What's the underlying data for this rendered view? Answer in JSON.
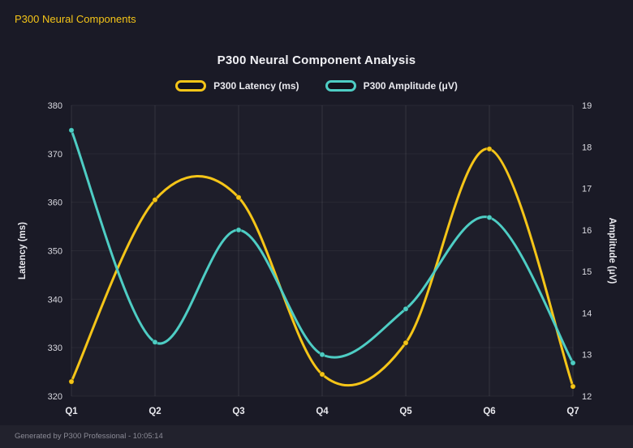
{
  "header": {
    "title": "P300 Neural Components"
  },
  "footer": {
    "text": "Generated by P300 Professional - 10:05:14"
  },
  "colors": {
    "page_background": "#1a1a26",
    "plot_background": "rgba(255,255,255,0.02)",
    "accent_yellow": "#f5c518",
    "accent_teal": "#4ecdc4",
    "grid_vertical": "rgba(255,255,255,0.10)",
    "grid_horizontal": "rgba(255,255,255,0.05)",
    "text_primary": "#e9e9ee",
    "text_muted": "#8b8b96"
  },
  "chart_data": {
    "type": "line",
    "title": "P300 Neural Component Analysis",
    "categories": [
      "Q1",
      "Q2",
      "Q3",
      "Q4",
      "Q5",
      "Q6",
      "Q7"
    ],
    "series": [
      {
        "name": "P300 Latency (ms)",
        "axis": "left",
        "color": "#f5c518",
        "values": [
          323,
          360.5,
          361,
          324.5,
          331,
          371,
          322
        ]
      },
      {
        "name": "P300 Amplitude (μV)",
        "axis": "right",
        "color": "#4ecdc4",
        "values": [
          18.4,
          13.3,
          16.0,
          13.0,
          14.1,
          16.3,
          12.8
        ]
      }
    ],
    "left_axis": {
      "label": "Latency (ms)",
      "min": 320,
      "max": 380,
      "step": 10
    },
    "right_axis": {
      "label": "Amplitude (μV)",
      "min": 12,
      "max": 19,
      "step": 1
    },
    "grid": true,
    "legend_position": "top",
    "curve": "smooth"
  }
}
